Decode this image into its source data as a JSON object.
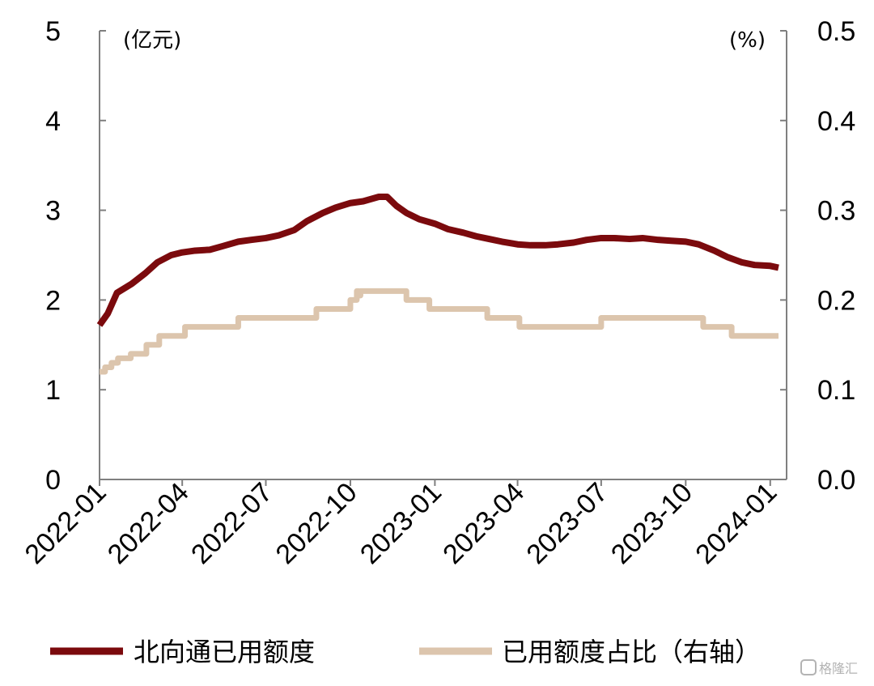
{
  "chart_data": {
    "type": "line",
    "left_unit": "(亿元)",
    "right_unit": "(%)",
    "left_axis": {
      "ylim": [
        0,
        5
      ],
      "ticks": [
        "0",
        "1",
        "2",
        "3",
        "4",
        "5"
      ]
    },
    "right_axis": {
      "ylim": [
        0,
        0.5
      ],
      "ticks": [
        "0.0",
        "0.1",
        "0.2",
        "0.3",
        "0.4",
        "0.5"
      ]
    },
    "x_ticks": [
      "2022-01",
      "2022-04",
      "2022-07",
      "2022-10",
      "2023-01",
      "2023-04",
      "2023-07",
      "2023-10",
      "2024-01"
    ],
    "grid": false,
    "legend_position": "bottom",
    "series": [
      {
        "name": "北向通已用额度",
        "axis": "left",
        "color": "#7b0a0d",
        "x": [
          "2022-01",
          "2022-01-10",
          "2022-01-20",
          "2022-02-05",
          "2022-02-20",
          "2022-03-05",
          "2022-03-20",
          "2022-04-01",
          "2022-04-15",
          "2022-05-01",
          "2022-05-15",
          "2022-06-01",
          "2022-06-15",
          "2022-07-01",
          "2022-07-15",
          "2022-08-01",
          "2022-08-15",
          "2022-09-01",
          "2022-09-15",
          "2022-10-01",
          "2022-10-15",
          "2022-11-01",
          "2022-11-10",
          "2022-11-20",
          "2022-12-01",
          "2022-12-15",
          "2023-01-01",
          "2023-01-15",
          "2023-02-01",
          "2023-02-15",
          "2023-03-01",
          "2023-03-15",
          "2023-04-01",
          "2023-04-15",
          "2023-05-01",
          "2023-05-15",
          "2023-06-01",
          "2023-06-15",
          "2023-07-01",
          "2023-07-15",
          "2023-08-01",
          "2023-08-15",
          "2023-09-01",
          "2023-09-15",
          "2023-10-01",
          "2023-10-15",
          "2023-11-01",
          "2023-11-15",
          "2023-12-01",
          "2023-12-15",
          "2024-01-01",
          "2024-01-10"
        ],
        "values": [
          1.72,
          1.85,
          2.08,
          2.18,
          2.3,
          2.42,
          2.5,
          2.53,
          2.55,
          2.56,
          2.6,
          2.65,
          2.67,
          2.69,
          2.72,
          2.78,
          2.88,
          2.97,
          3.03,
          3.08,
          3.1,
          3.15,
          3.15,
          3.05,
          2.97,
          2.9,
          2.85,
          2.79,
          2.75,
          2.71,
          2.68,
          2.65,
          2.62,
          2.61,
          2.61,
          2.62,
          2.64,
          2.67,
          2.69,
          2.69,
          2.68,
          2.69,
          2.67,
          2.66,
          2.65,
          2.62,
          2.55,
          2.48,
          2.42,
          2.39,
          2.38,
          2.36
        ]
      },
      {
        "name": "已用额度占比（右轴）",
        "axis": "right",
        "color": "#dcc5ad",
        "x": [
          "2022-01",
          "2022-01-07",
          "2022-01-14",
          "2022-01-21",
          "2022-02-04",
          "2022-02-21",
          "2022-03-07",
          "2022-03-21",
          "2022-04-04",
          "2022-06-01",
          "2022-08-01",
          "2022-08-25",
          "2022-10-01",
          "2022-10-08",
          "2022-10-10",
          "2022-10-12",
          "2022-11-20",
          "2022-12-01",
          "2022-12-26",
          "2023-02-01",
          "2023-02-27",
          "2023-04-03",
          "2023-06-01",
          "2023-07-01",
          "2023-10-01",
          "2023-10-20",
          "2023-11-20",
          "2024-01-10"
        ],
        "values": [
          0.12,
          0.125,
          0.13,
          0.135,
          0.14,
          0.15,
          0.16,
          0.16,
          0.17,
          0.18,
          0.18,
          0.19,
          0.2,
          0.21,
          0.205,
          0.21,
          0.21,
          0.2,
          0.19,
          0.19,
          0.18,
          0.17,
          0.17,
          0.18,
          0.18,
          0.17,
          0.16,
          0.16
        ]
      }
    ]
  },
  "watermark": "格隆汇"
}
